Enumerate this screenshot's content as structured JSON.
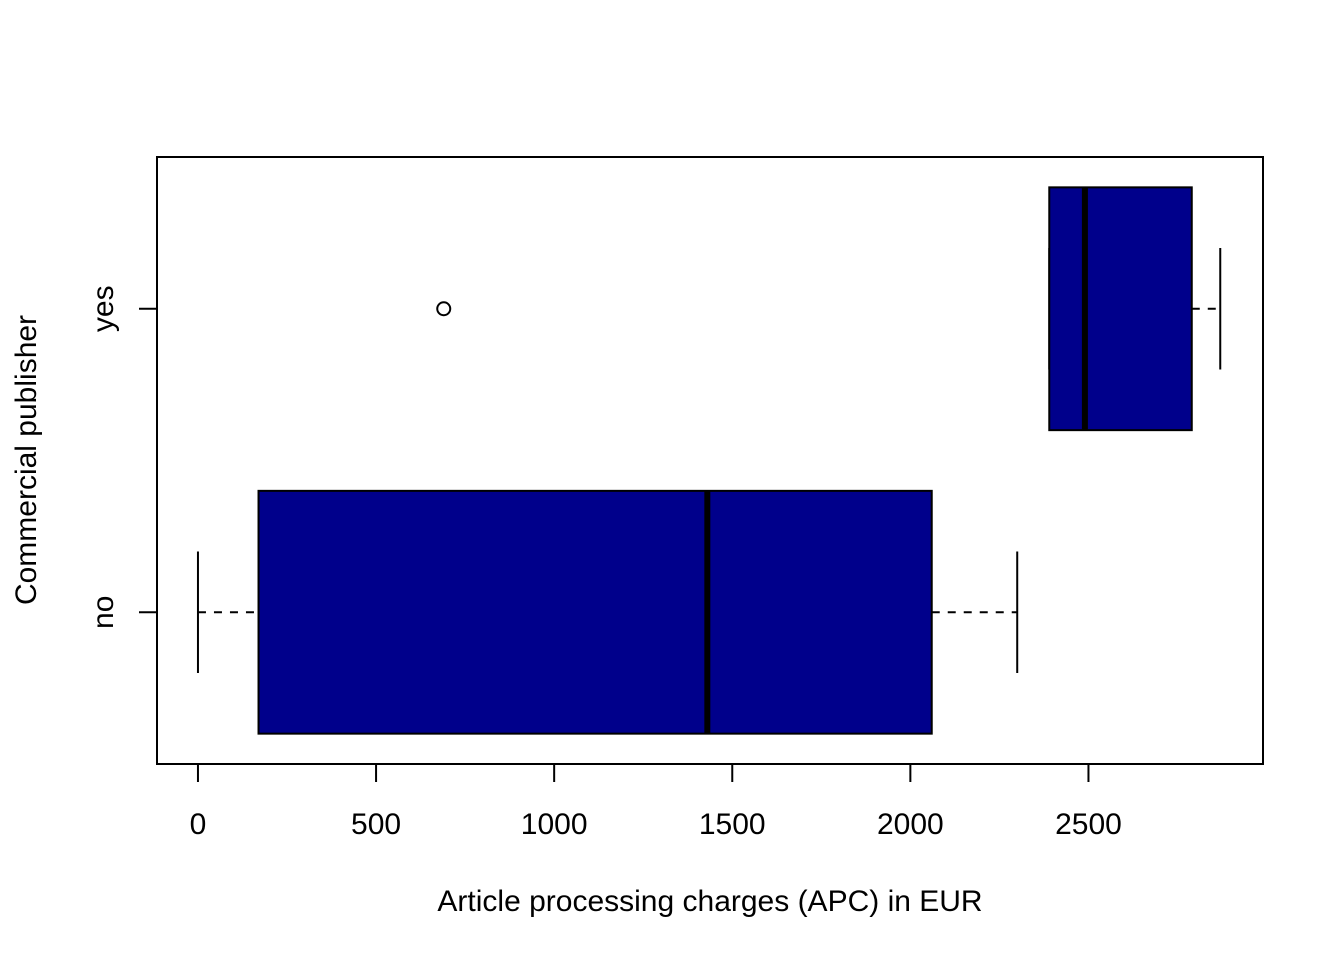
{
  "chart_data": {
    "type": "boxplot",
    "orientation": "horizontal",
    "title": "",
    "xlabel": "Article processing charges (APC) in EUR",
    "ylabel": "Commercial publisher",
    "xlim": [
      -115,
      2990
    ],
    "xticks": [
      0,
      500,
      1000,
      1500,
      2000,
      2500
    ],
    "xtick_labels": [
      "0",
      "500",
      "1000",
      "1500",
      "2000",
      "2500"
    ],
    "categories": [
      "no",
      "yes"
    ],
    "box_color": "#00008B",
    "grid": false,
    "legend": "none",
    "boxes": [
      {
        "category": "no",
        "whisker_low": 0,
        "q1": 170,
        "median": 1430,
        "q3": 2060,
        "whisker_high": 2300,
        "outliers": []
      },
      {
        "category": "yes",
        "whisker_low": 2390,
        "q1": 2390,
        "median": 2490,
        "q3": 2790,
        "whisker_high": 2870,
        "outliers": [
          690
        ]
      }
    ]
  }
}
